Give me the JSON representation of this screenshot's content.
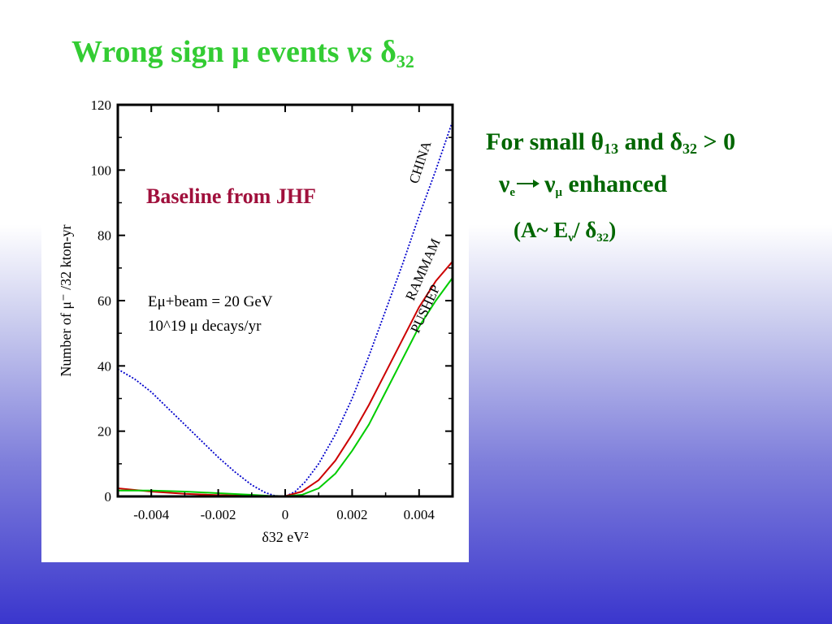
{
  "title": {
    "text_main": "Wrong sign μ events",
    "text_vs": "vs",
    "text_delta": "δ",
    "text_sub": "32",
    "color": "#33cc33"
  },
  "side_text": {
    "line1_prefix": "For small θ",
    "line1_sub1": "13",
    "line1_mid": " and δ",
    "line1_sub2": "32",
    "line1_suffix": " > 0",
    "line2_nu1": "ν",
    "line2_sub1": "e",
    "line2_nu2": "ν",
    "line2_sub2": "μ",
    "line2_suffix": " enhanced",
    "line3_prefix": "(A~ E",
    "line3_sub1": "ν",
    "line3_mid": "/ δ",
    "line3_sub2": "32",
    "line3_suffix": ")",
    "color": "#006600"
  },
  "chart_data": {
    "type": "line",
    "title": "",
    "annotation_title": "Baseline from JHF",
    "annotation_params": [
      "Eμ+beam = 20 GeV",
      "10^19 μ decays/yr"
    ],
    "xlabel": "δ32 eV²",
    "ylabel": "Number of μ⁻ /32 kton-yr",
    "xlim": [
      -0.005,
      0.005
    ],
    "ylim": [
      0,
      120
    ],
    "xticks": [
      -0.004,
      -0.002,
      0,
      0.002,
      0.004
    ],
    "xtick_labels": [
      "-0.004",
      "-0.002",
      "0",
      "0.002",
      "0.004"
    ],
    "yticks": [
      0,
      20,
      40,
      60,
      80,
      100,
      120
    ],
    "ytick_labels": [
      "0",
      "20",
      "40",
      "60",
      "80",
      "100",
      "120"
    ],
    "series": [
      {
        "name": "CHINA",
        "color": "#0000cc",
        "style": "dotted",
        "x": [
          -0.005,
          -0.0045,
          -0.004,
          -0.0035,
          -0.003,
          -0.0025,
          -0.002,
          -0.0015,
          -0.001,
          -0.0006,
          -0.0003,
          0,
          0.0003,
          0.0006,
          0.001,
          0.0015,
          0.002,
          0.0025,
          0.003,
          0.0035,
          0.004,
          0.0045,
          0.005
        ],
        "y": [
          39,
          36,
          32,
          27,
          22,
          17,
          12,
          7.5,
          3.5,
          1.2,
          0.2,
          0,
          1.5,
          4.5,
          10,
          19,
          30,
          43,
          57,
          71,
          86,
          100,
          115
        ]
      },
      {
        "name": "RAMMAM",
        "color": "#cc0000",
        "style": "solid",
        "x": [
          -0.005,
          -0.004,
          -0.003,
          -0.002,
          -0.001,
          -0.0005,
          0,
          0.0005,
          0.001,
          0.0015,
          0.002,
          0.0025,
          0.003,
          0.0035,
          0.004,
          0.0045,
          0.005
        ],
        "y": [
          2.5,
          1.5,
          0.8,
          0.4,
          0.2,
          0.1,
          0.1,
          1.5,
          5,
          11,
          19,
          28,
          38,
          48,
          58,
          66,
          72
        ]
      },
      {
        "name": "PUSHEP",
        "color": "#00cc00",
        "style": "solid",
        "x": [
          -0.005,
          -0.004,
          -0.003,
          -0.002,
          -0.001,
          -0.0005,
          0,
          0.0005,
          0.001,
          0.0015,
          0.002,
          0.0025,
          0.003,
          0.0035,
          0.004,
          0.0045,
          0.005
        ],
        "y": [
          1.8,
          1.8,
          1.5,
          1,
          0.5,
          0.2,
          0.1,
          0.5,
          2.5,
          7,
          14,
          22,
          32,
          42,
          52,
          60,
          67
        ]
      }
    ],
    "series_label_angles": [
      -72,
      -66,
      -65
    ],
    "legend": "inline labels"
  }
}
